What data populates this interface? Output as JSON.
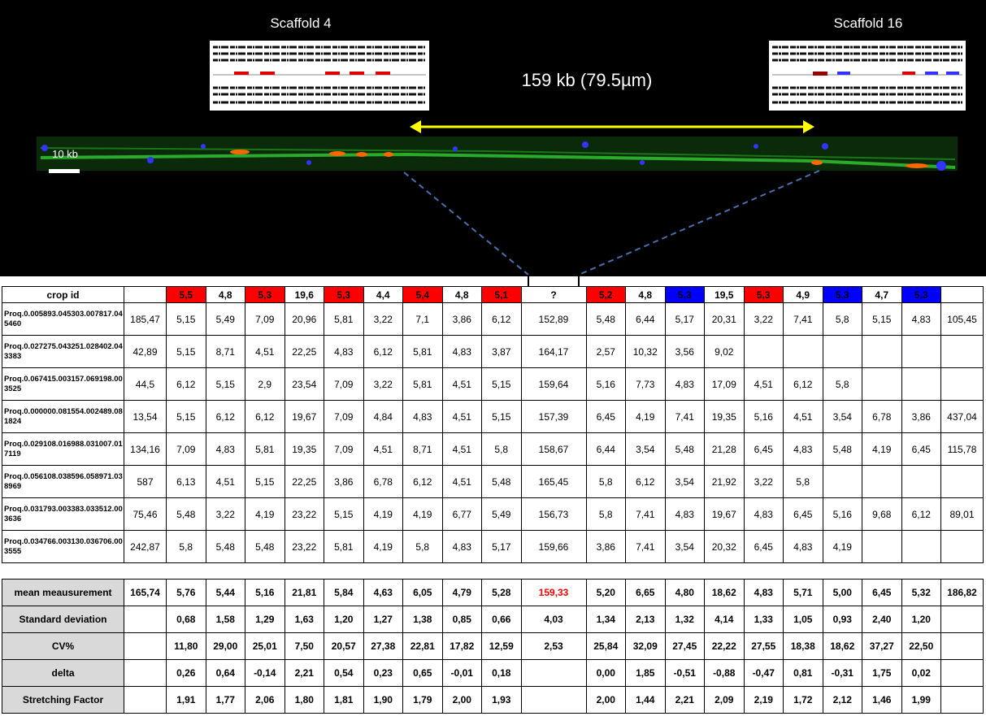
{
  "image": {
    "left_label": "Scaffold 4",
    "right_label": "Scaffold 16",
    "distance_label": "159 kb (79.5µm)",
    "scale_label": "10 kb"
  },
  "table": {
    "header": [
      "crop id",
      null,
      "5,5",
      "4,8",
      "5,3",
      "19,6",
      "5,3",
      "4,4",
      "5,4",
      "4,8",
      "5,1",
      "?",
      "5,2",
      "4,8",
      "5,3",
      "19,5",
      "5,3",
      "4,9",
      "5,3",
      "4,7",
      "5,3",
      null
    ],
    "header_colors": [
      null,
      null,
      "red",
      null,
      "red",
      null,
      "red",
      null,
      "red",
      null,
      "red",
      null,
      "red",
      null,
      "blue",
      null,
      "red",
      null,
      "blue",
      null,
      "blue",
      null
    ],
    "rows": [
      [
        "Proq.0.005893.045303.007817.045460",
        "185,47",
        "5,15",
        "5,49",
        "7,09",
        "20,96",
        "5,81",
        "3,22",
        "7,1",
        "3,86",
        "6,12",
        "152,89",
        "5,48",
        "6,44",
        "5,17",
        "20,31",
        "3,22",
        "7,41",
        "5,8",
        "5,15",
        "4,83",
        "105,45"
      ],
      [
        "Proq.0.027275.043251.028402.043383",
        "42,89",
        "5,15",
        "8,71",
        "4,51",
        "22,25",
        "4,83",
        "6,12",
        "5,81",
        "4,83",
        "3,87",
        "164,17",
        "2,57",
        "10,32",
        "3,56",
        "9,02",
        null,
        null,
        null,
        null,
        null,
        null
      ],
      [
        "Proq.0.067415.003157.069198.003525",
        "44,5",
        "6,12",
        "5,15",
        "2,9",
        "23,54",
        "7,09",
        "3,22",
        "5,81",
        "4,51",
        "5,15",
        "159,64",
        "5,16",
        "7,73",
        "4,83",
        "17,09",
        "4,51",
        "6,12",
        "5,8",
        null,
        null,
        null
      ],
      [
        "Proq.0.000000.081554.002489.081824",
        "13,54",
        "5,15",
        "6,12",
        "6,12",
        "19,67",
        "7,09",
        "4,84",
        "4,83",
        "4,51",
        "5,15",
        "157,39",
        "6,45",
        "4,19",
        "7,41",
        "19,35",
        "5,16",
        "4,51",
        "3,54",
        "6,78",
        "3,86",
        "437,04"
      ],
      [
        "Proq.0.029108.016988.031007.017119",
        "134,16",
        "7,09",
        "4,83",
        "5,81",
        "19,35",
        "7,09",
        "4,51",
        "8,71",
        "4,51",
        "5,8",
        "158,67",
        "6,44",
        "3,54",
        "5,48",
        "21,28",
        "6,45",
        "4,83",
        "5,48",
        "4,19",
        "6,45",
        "115,78"
      ],
      [
        "Proq.0.056108.038596.058971.038969",
        "587",
        "6,13",
        "4,51",
        "5,15",
        "22,25",
        "3,86",
        "6,78",
        "6,12",
        "4,51",
        "5,48",
        "165,45",
        "5,8",
        "6,12",
        "3,54",
        "21,92",
        "3,22",
        "5,8",
        null,
        null,
        null,
        null
      ],
      [
        "Proq.0.031793.003383.033512.003636",
        "75,46",
        "5,48",
        "3,22",
        "4,19",
        "23,22",
        "5,15",
        "4,19",
        "4,19",
        "6,77",
        "5,49",
        "156,73",
        "5,8",
        "7,41",
        "4,83",
        "19,67",
        "4,83",
        "6,45",
        "5,16",
        "9,68",
        "6,12",
        "89,01"
      ],
      [
        "Proq.0.034766.003130.036706.003555",
        "242,87",
        "5,8",
        "5,48",
        "5,48",
        "23,22",
        "5,81",
        "4,19",
        "5,8",
        "4,83",
        "5,17",
        "159,66",
        "3,86",
        "7,41",
        "3,54",
        "20,32",
        "6,45",
        "4,83",
        "4,19",
        null,
        null,
        null
      ]
    ],
    "summary": [
      [
        "mean meausurement",
        "165,74",
        "5,76",
        "5,44",
        "5,16",
        "21,81",
        "5,84",
        "4,63",
        "6,05",
        "4,79",
        "5,28",
        "159,33",
        "5,20",
        "6,65",
        "4,80",
        "18,62",
        "4,83",
        "5,71",
        "5,00",
        "6,45",
        "5,32",
        "186,82"
      ],
      [
        "Standard deviation",
        null,
        "0,68",
        "1,58",
        "1,29",
        "1,63",
        "1,20",
        "1,27",
        "1,38",
        "0,85",
        "0,66",
        "4,03",
        "1,34",
        "2,13",
        "1,32",
        "4,14",
        "1,33",
        "1,05",
        "0,93",
        "2,40",
        "1,20",
        null
      ],
      [
        "CV%",
        null,
        "11,80",
        "29,00",
        "25,01",
        "7,50",
        "20,57",
        "27,38",
        "22,81",
        "17,82",
        "12,59",
        "2,53",
        "25,84",
        "32,09",
        "27,45",
        "22,22",
        "27,55",
        "18,38",
        "18,62",
        "37,27",
        "22,50",
        null
      ],
      [
        "delta",
        null,
        "0,26",
        "0,64",
        "-0,14",
        "2,21",
        "0,54",
        "0,23",
        "0,65",
        "-0,01",
        "0,18",
        null,
        "0,00",
        "1,85",
        "-0,51",
        "-0,88",
        "-0,47",
        "0,81",
        "-0,31",
        "1,75",
        "0,02",
        null
      ],
      [
        "Stretching Factor",
        null,
        "1,91",
        "1,77",
        "2,06",
        "1,80",
        "1,81",
        "1,90",
        "1,79",
        "2,00",
        "1,93",
        null,
        "2,00",
        "1,44",
        "2,21",
        "2,09",
        "2,19",
        "1,72",
        "2,12",
        "1,46",
        "1,99",
        null
      ]
    ],
    "summary_highlight": {
      "row": 0,
      "col": 11,
      "color": "red"
    }
  }
}
